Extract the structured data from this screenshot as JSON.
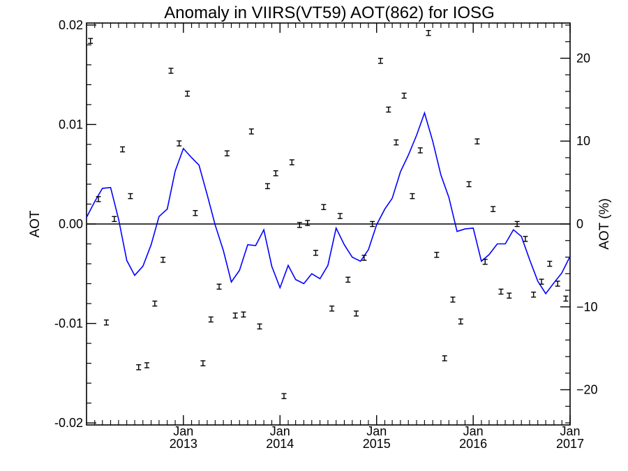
{
  "colors": {
    "line": "#0000ff",
    "axis": "#000000",
    "points": "#000000"
  },
  "chart_data": {
    "type": "line",
    "title": "Anomaly in VIIRS(VT59) AOT(862) for IOSG",
    "ylabel": "AOT",
    "ylabel_right": "AOT (%)",
    "ylim": [
      -0.0202,
      0.0202
    ],
    "ylim_right": [
      -24.25,
      24.25
    ],
    "xlim": [
      "2012-01-01",
      "2017-01-01"
    ],
    "yticks": [
      {
        "value": 0.02,
        "label": "0.02"
      },
      {
        "value": 0.01,
        "label": "0.01"
      },
      {
        "value": 0.0,
        "label": "0.00"
      },
      {
        "value": -0.01,
        "label": "-0.01"
      },
      {
        "value": -0.02,
        "label": "-0.02"
      }
    ],
    "yticks_right": [
      {
        "value": 20,
        "label": "20"
      },
      {
        "value": 10,
        "label": "10"
      },
      {
        "value": 0,
        "label": "0"
      },
      {
        "value": -10,
        "label": "-10"
      },
      {
        "value": -20,
        "label": "-20"
      }
    ],
    "xticks": [
      {
        "date": "2013-01-01",
        "label_top": "Jan",
        "label_bottom": "2013"
      },
      {
        "date": "2014-01-01",
        "label_top": "Jan",
        "label_bottom": "2014"
      },
      {
        "date": "2015-01-01",
        "label_top": "Jan",
        "label_bottom": "2015"
      },
      {
        "date": "2016-01-01",
        "label_top": "Jan",
        "label_bottom": "2016"
      },
      {
        "date": "2017-01-01",
        "label_top": "Jan",
        "label_bottom": "2017"
      }
    ],
    "zero_line": 0,
    "series": [
      {
        "kind": "line",
        "axis": "right",
        "x": [
          "2012-01-01",
          "2012-02-01",
          "2012-03-01",
          "2012-04-01",
          "2012-05-01",
          "2012-06-01",
          "2012-07-01",
          "2012-08-01",
          "2012-09-01",
          "2012-10-01",
          "2012-11-01",
          "2012-12-01",
          "2013-01-01",
          "2013-02-01",
          "2013-03-01",
          "2013-04-01",
          "2013-05-01",
          "2013-06-01",
          "2013-07-01",
          "2013-08-01",
          "2013-09-01",
          "2013-10-01",
          "2013-11-01",
          "2013-12-01",
          "2014-01-01",
          "2014-02-01",
          "2014-03-01",
          "2014-04-01",
          "2014-05-01",
          "2014-06-01",
          "2014-07-01",
          "2014-08-01",
          "2014-09-01",
          "2014-10-01",
          "2014-11-01",
          "2014-12-01",
          "2015-01-01",
          "2015-02-01",
          "2015-03-01",
          "2015-04-01",
          "2015-05-01",
          "2015-06-01",
          "2015-07-01",
          "2015-08-01",
          "2015-09-01",
          "2015-10-01",
          "2015-11-01",
          "2015-12-01",
          "2016-01-01",
          "2016-02-01",
          "2016-03-01",
          "2016-04-01",
          "2016-05-01",
          "2016-06-01",
          "2016-07-01",
          "2016-08-01",
          "2016-09-01",
          "2016-10-01",
          "2016-11-01",
          "2016-12-01",
          "2017-01-01"
        ],
        "values": [
          0.8,
          2.7,
          4.3,
          4.4,
          0.6,
          -4.4,
          -6.2,
          -5.1,
          -2.5,
          0.9,
          1.8,
          6.4,
          9.1,
          8.0,
          7.1,
          3.5,
          -0.1,
          -3.2,
          -7.0,
          -5.6,
          -2.5,
          -2.6,
          -0.7,
          -5.1,
          -7.7,
          -5.0,
          -6.7,
          -7.2,
          -6.0,
          -6.6,
          -5.0,
          -0.5,
          -2.5,
          -4.0,
          -4.5,
          -3.1,
          -0.1,
          1.8,
          3.1,
          6.3,
          8.3,
          10.7,
          13.4,
          10.0,
          5.9,
          3.2,
          -0.9,
          -0.6,
          -0.5,
          -4.5,
          -3.7,
          -2.4,
          -2.4,
          -0.7,
          -1.5,
          -4.3,
          -6.9,
          -8.4,
          -7.1,
          -5.9,
          -3.9
        ]
      },
      {
        "kind": "errorbar",
        "axis": "left",
        "x": [
          "2012-01-16",
          "2012-02-15",
          "2012-03-16",
          "2012-04-15",
          "2012-05-16",
          "2012-06-15",
          "2012-07-16",
          "2012-08-16",
          "2012-09-15",
          "2012-10-16",
          "2012-11-15",
          "2012-12-16",
          "2013-01-16",
          "2013-02-15",
          "2013-03-16",
          "2013-04-15",
          "2013-05-16",
          "2013-06-15",
          "2013-07-16",
          "2013-08-16",
          "2013-09-15",
          "2013-10-16",
          "2013-11-15",
          "2013-12-16",
          "2014-01-16",
          "2014-02-15",
          "2014-03-16",
          "2014-04-15",
          "2014-05-16",
          "2014-06-15",
          "2014-07-16",
          "2014-08-16",
          "2014-09-15",
          "2014-10-16",
          "2014-11-15",
          "2014-12-16",
          "2015-01-16",
          "2015-02-15",
          "2015-03-16",
          "2015-04-15",
          "2015-05-16",
          "2015-06-15",
          "2015-07-16",
          "2015-08-16",
          "2015-09-15",
          "2015-10-16",
          "2015-11-15",
          "2015-12-16",
          "2016-01-16",
          "2016-02-15",
          "2016-03-16",
          "2016-04-15",
          "2016-05-16",
          "2016-06-15",
          "2016-07-16",
          "2016-08-16",
          "2016-09-15",
          "2016-10-16",
          "2016-11-15",
          "2016-12-16"
        ],
        "values": [
          0.0184,
          0.0025,
          -0.0099,
          0.0005,
          0.0075,
          0.0028,
          -0.0144,
          -0.0142,
          -0.008,
          -0.0036,
          0.0154,
          0.0081,
          0.0131,
          0.0011,
          -0.014,
          -0.0096,
          -0.0063,
          0.0071,
          -0.0092,
          -0.0091,
          0.0093,
          -0.0103,
          0.0038,
          0.0051,
          -0.0173,
          0.0062,
          -0.0001,
          0.0001,
          -0.0029,
          0.0017,
          -0.0085,
          0.0008,
          -0.0056,
          -0.009,
          -0.0034,
          0.0,
          0.0164,
          0.0115,
          0.0082,
          0.0129,
          0.0028,
          0.0074,
          0.0192,
          -0.0031,
          -0.0135,
          -0.0076,
          -0.0098,
          0.004,
          0.0083,
          -0.0038,
          0.0015,
          -0.0068,
          -0.0072,
          0.0,
          -0.0015,
          -0.0071,
          -0.0058,
          -0.004,
          -0.006,
          -0.0075
        ],
        "err": 0.00025
      }
    ]
  }
}
